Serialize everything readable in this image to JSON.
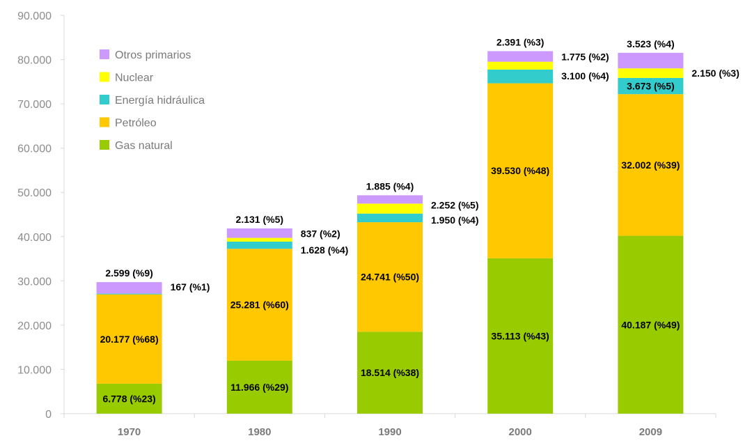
{
  "chart_data": {
    "type": "bar",
    "stacked": true,
    "categories": [
      "1970",
      "1980",
      "1990",
      "2000",
      "2009"
    ],
    "ylim": [
      0,
      90000
    ],
    "yticks": [
      "0",
      "10.000",
      "20.000",
      "30.000",
      "40.000",
      "50.000",
      "60.000",
      "70.000",
      "80.000",
      "90.000"
    ],
    "grid": false,
    "legend": "top-left",
    "series": [
      {
        "name": "Gas natural",
        "color": "#99cc00",
        "values": [
          6778,
          11966,
          18514,
          35113,
          40187
        ],
        "labels": [
          "6.778 (%23)",
          "11.966 (%29)",
          "18.514 (%38)",
          "35.113 (%43)",
          "40.187 (%49)"
        ]
      },
      {
        "name": "Petróleo",
        "color": "#ffc800",
        "values": [
          20177,
          25281,
          24741,
          39530,
          32002
        ],
        "labels": [
          "20.177 (%68)",
          "25.281 (%60)",
          "24.741 (%50)",
          "39.530 (%48)",
          "32.002 (%39)"
        ]
      },
      {
        "name": "Energía hidráulica",
        "color": "#33cccc",
        "values": [
          167,
          1628,
          1950,
          3100,
          3673
        ],
        "labels": [
          "167 (%1)",
          "1.628 (%4)",
          "1.950 (%4)",
          "3.100 (%4)",
          "3.673 (%5)"
        ]
      },
      {
        "name": "Nuclear",
        "color": "#ffff00",
        "values": [
          0,
          837,
          2252,
          1775,
          2150
        ],
        "labels": [
          "",
          "837 (%2)",
          "2.252 (%5)",
          "1.775 (%2)",
          "2.150 (%3)"
        ]
      },
      {
        "name": "Otros primarios",
        "color": "#cc99ff",
        "values": [
          2599,
          2131,
          1885,
          2391,
          3523
        ],
        "labels": [
          "2.599 (%9)",
          "2.131 (%5)",
          "1.885 (%4)",
          "2.391 (%3)",
          "3.523 (%4)"
        ]
      }
    ]
  }
}
